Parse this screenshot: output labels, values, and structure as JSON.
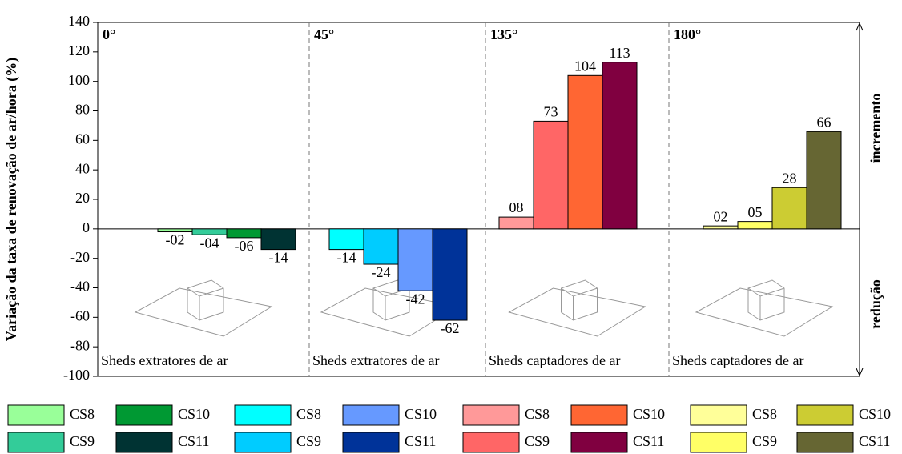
{
  "chart_data": {
    "type": "bar",
    "ylabel": "Variação da taxa de renovação de ar/hora (%)",
    "ylim": [
      -100,
      140
    ],
    "yticks": [
      -100,
      -80,
      -60,
      -40,
      -20,
      0,
      20,
      40,
      60,
      80,
      100,
      120,
      140
    ],
    "annotations": [
      "incremento",
      "redução"
    ],
    "panels": [
      {
        "title": "0°",
        "caption": "Sheds extratores de ar",
        "series": [
          {
            "name": "CS8",
            "color": "#99ff99",
            "values": [
              -2
            ],
            "value_labels": [
              "-02"
            ]
          },
          {
            "name": "CS9",
            "color": "#33cc99",
            "values": [
              -4
            ],
            "value_labels": [
              "-04"
            ]
          },
          {
            "name": "CS10",
            "color": "#009933",
            "values": [
              -6
            ],
            "value_labels": [
              "-06"
            ]
          },
          {
            "name": "CS11",
            "color": "#003333",
            "values": [
              -14
            ],
            "value_labels": [
              "-14"
            ]
          }
        ]
      },
      {
        "title": "45°",
        "caption": "Sheds extratores de ar",
        "series": [
          {
            "name": "CS8",
            "color": "#00ffff",
            "values": [
              -14
            ]
          },
          {
            "name": "CS9",
            "color": "#00ccff",
            "values": [
              -24
            ]
          },
          {
            "name": "CS10",
            "color": "#6699ff",
            "values": [
              -42
            ]
          },
          {
            "name": "CS11",
            "color": "#003399",
            "values": [
              -62
            ]
          }
        ]
      },
      {
        "title": "135°",
        "caption": "Sheds captadores de ar",
        "series": [
          {
            "name": "CS8",
            "color": "#ff9999",
            "values": [
              8
            ],
            "value_labels": [
              "08"
            ]
          },
          {
            "name": "CS9",
            "color": "#ff6666",
            "values": [
              73
            ]
          },
          {
            "name": "CS10",
            "color": "#ff6633",
            "values": [
              104
            ]
          },
          {
            "name": "CS11",
            "color": "#800040",
            "values": [
              113
            ]
          }
        ]
      },
      {
        "title": "180°",
        "caption": "Sheds captadores de ar",
        "series": [
          {
            "name": "CS8",
            "color": "#ffff99",
            "values": [
              2
            ],
            "value_labels": [
              "02"
            ]
          },
          {
            "name": "CS9",
            "color": "#ffff66",
            "values": [
              5
            ],
            "value_labels": [
              "05"
            ]
          },
          {
            "name": "CS10",
            "color": "#cccc33",
            "values": [
              28
            ]
          },
          {
            "name": "CS11",
            "color": "#666633",
            "values": [
              66
            ]
          }
        ]
      }
    ]
  }
}
